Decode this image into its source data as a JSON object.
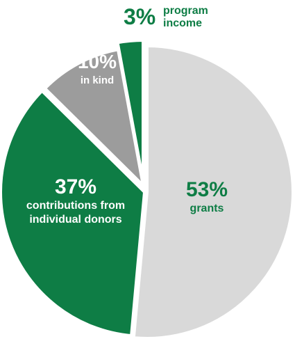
{
  "chart_data": {
    "type": "pie",
    "title": "",
    "slices": [
      {
        "label": "grants",
        "value": 53,
        "pct_label": "53%",
        "lines": [
          "grants"
        ],
        "color": "#d9d9d9",
        "pct_color": "#0e7d45",
        "text_color": "#0e7d45"
      },
      {
        "label": "contributions from individual donors",
        "value": 37,
        "pct_label": "37%",
        "lines": [
          "contributions from",
          "individual donors"
        ],
        "color": "#0e7d45",
        "pct_color": "#ffffff",
        "text_color": "#ffffff"
      },
      {
        "label": "in kind",
        "value": 10,
        "pct_label": "10%",
        "lines": [
          "in kind"
        ],
        "color": "#9c9c9c",
        "pct_color": "#ffffff",
        "text_color": "#ffffff"
      },
      {
        "label": "program income",
        "value": 3,
        "pct_label": "3%",
        "lines": [
          "program",
          "income"
        ],
        "color": "#0e7d45",
        "pct_color": "#0e7d45",
        "text_color": "#0e7d45"
      }
    ]
  }
}
